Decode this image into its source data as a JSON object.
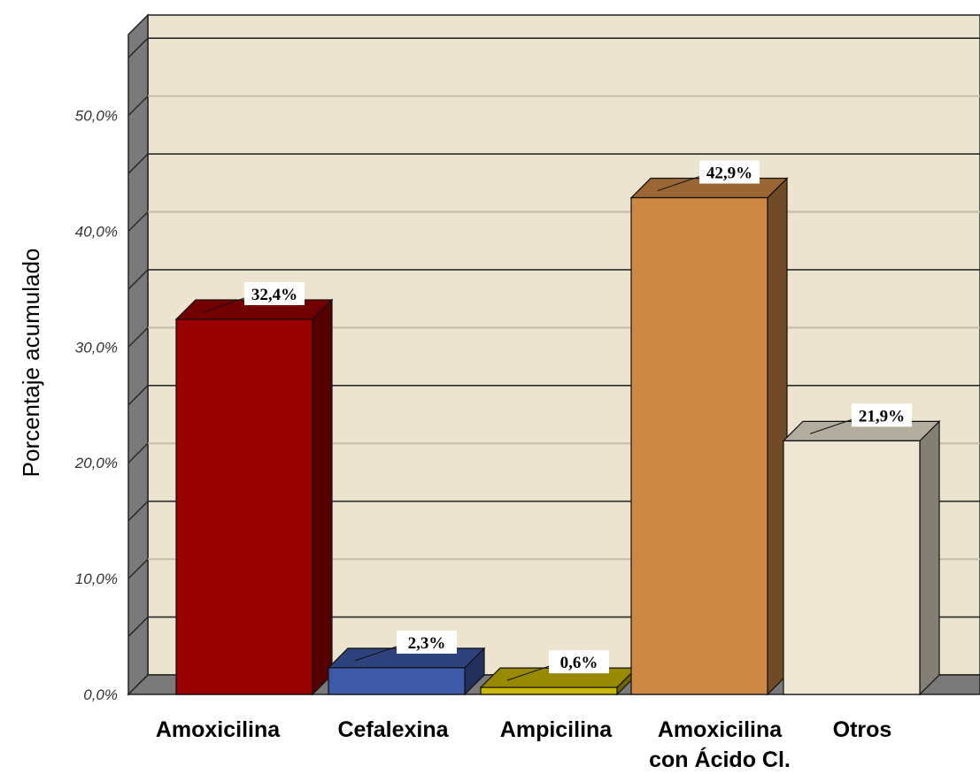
{
  "chart_data": {
    "type": "bar",
    "categories": [
      "Amoxicilina",
      "Cefalexina",
      "Ampicilina",
      [
        "Amoxicilina",
        "con Ácido Cl."
      ],
      "Otros"
    ],
    "values": [
      32.4,
      2.3,
      0.6,
      42.9,
      21.9
    ],
    "data_labels": [
      "32,4%",
      "2,3%",
      "0,6%",
      "42,9%",
      "21,9%"
    ],
    "ylabel": "Porcentaje acumulado",
    "ylim": [
      0,
      57
    ],
    "yticks": [
      0,
      10,
      20,
      30,
      40,
      50
    ],
    "ytick_labels": [
      "0,0%",
      "10,0%",
      "20,0%",
      "30,0%",
      "40,0%",
      "50,0%"
    ],
    "grid": true,
    "style": "3d",
    "colors": {
      "bars": [
        "#990000",
        "#3d59a8",
        "#c9b800",
        "#cd8844",
        "#efe7d4"
      ],
      "plot_background": "#ede4cf",
      "wall": "#7a7a7a"
    }
  }
}
